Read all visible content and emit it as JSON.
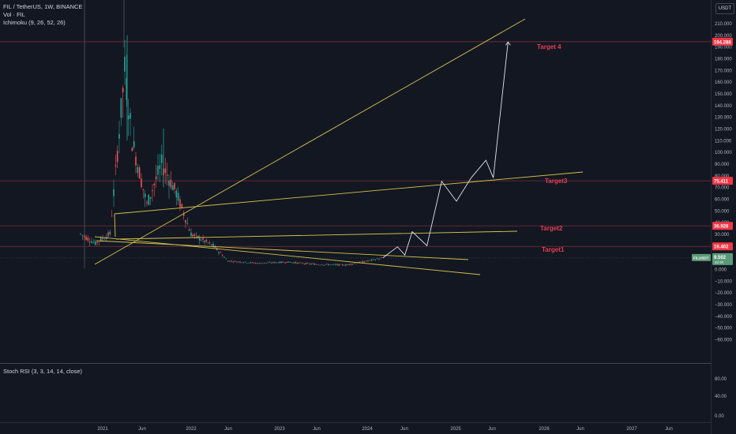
{
  "header": {
    "symbol_line": "FIL / TetherUS, 1W, BINANCE",
    "volume_line": "Vol · FIL",
    "ichimoku_line": "Ichimoku (9, 26, 52, 26)"
  },
  "currency_button": "USDT",
  "price_axis": {
    "ticks": [
      "210.000",
      "200.000",
      "190.000",
      "180.000",
      "170.000",
      "160.000",
      "150.000",
      "140.000",
      "130.000",
      "120.000",
      "110.000",
      "100.000",
      "90.000",
      "80.000",
      "70.000",
      "60.000",
      "50.000",
      "40.000",
      "30.000",
      "20.000",
      "10.000",
      "0.000",
      "−10.000",
      "−20.000",
      "−30.000",
      "−40.000",
      "−50.000",
      "−60.000"
    ],
    "tick_values": [
      210,
      200,
      190,
      180,
      170,
      160,
      150,
      140,
      130,
      120,
      110,
      100,
      90,
      80,
      70,
      60,
      50,
      40,
      30,
      20,
      10,
      0,
      -10,
      -20,
      -30,
      -40,
      -50,
      -60
    ]
  },
  "price_labels": [
    {
      "text": "194.288",
      "value": 194.288,
      "color": "#f23645"
    },
    {
      "text": "75.411",
      "value": 75.411,
      "color": "#f23645"
    },
    {
      "text": "36.928",
      "value": 36.928,
      "color": "#f23645"
    },
    {
      "text": "19.402",
      "value": 19.402,
      "color": "#f23645"
    }
  ],
  "current_price": {
    "symbol": "FILUSDT",
    "price": "9.502",
    "countdown": "4d 9h",
    "value": 9.502,
    "color": "#5b9a78"
  },
  "targets": [
    {
      "label": "Target 4",
      "value": 194.288
    },
    {
      "label": "Target3",
      "value": 75.411
    },
    {
      "label": "Target2",
      "value": 36.928
    },
    {
      "label": "Target1",
      "value": 19.402
    }
  ],
  "time_axis": [
    "2021",
    "Jun",
    "2022",
    "Jun",
    "2023",
    "Jun",
    "2024",
    "Jun",
    "2025",
    "Jun",
    "2026",
    "Jun",
    "2027",
    "Jun"
  ],
  "stoch_rsi": {
    "label": "Stoch RSI (3, 3, 14, 14, close)",
    "ticks": [
      "80.00",
      "40.00",
      "0.00"
    ]
  },
  "colors": {
    "background": "#131722",
    "trendline": "#d4c24a",
    "target_label": "#e53e54",
    "projection": "#e0e3eb",
    "horizontal": "#7a2c35"
  },
  "chart_data": {
    "type": "candlestick",
    "symbol": "FIL / TetherUS",
    "interval": "1W",
    "exchange": "BINANCE",
    "ylim": [
      -65,
      215
    ],
    "approx_close_path": [
      {
        "x": "2020-10",
        "y": 30
      },
      {
        "x": "2020-12",
        "y": 22
      },
      {
        "x": "2021-02",
        "y": 30
      },
      {
        "x": "2021-04",
        "y": 170
      },
      {
        "x": "2021-05",
        "y": 110
      },
      {
        "x": "2021-07",
        "y": 55
      },
      {
        "x": "2021-09",
        "y": 90
      },
      {
        "x": "2021-11",
        "y": 65
      },
      {
        "x": "2022-01",
        "y": 30
      },
      {
        "x": "2022-04",
        "y": 20
      },
      {
        "x": "2022-06",
        "y": 7
      },
      {
        "x": "2022-10",
        "y": 5
      },
      {
        "x": "2023-02",
        "y": 6
      },
      {
        "x": "2023-06",
        "y": 4
      },
      {
        "x": "2023-10",
        "y": 3.5
      },
      {
        "x": "2024-01",
        "y": 7
      },
      {
        "x": "2024-03",
        "y": 9.5
      }
    ],
    "projection_path": [
      {
        "x": "2024-03",
        "y": 9.5
      },
      {
        "x": "2024-05",
        "y": 19
      },
      {
        "x": "2024-06",
        "y": 12
      },
      {
        "x": "2024-07",
        "y": 32
      },
      {
        "x": "2024-09",
        "y": 20
      },
      {
        "x": "2024-11",
        "y": 75
      },
      {
        "x": "2025-01",
        "y": 58
      },
      {
        "x": "2025-03",
        "y": 78
      },
      {
        "x": "2025-05",
        "y": 93
      },
      {
        "x": "2025-06",
        "y": 78
      },
      {
        "x": "2025-08",
        "y": 194
      }
    ]
  }
}
